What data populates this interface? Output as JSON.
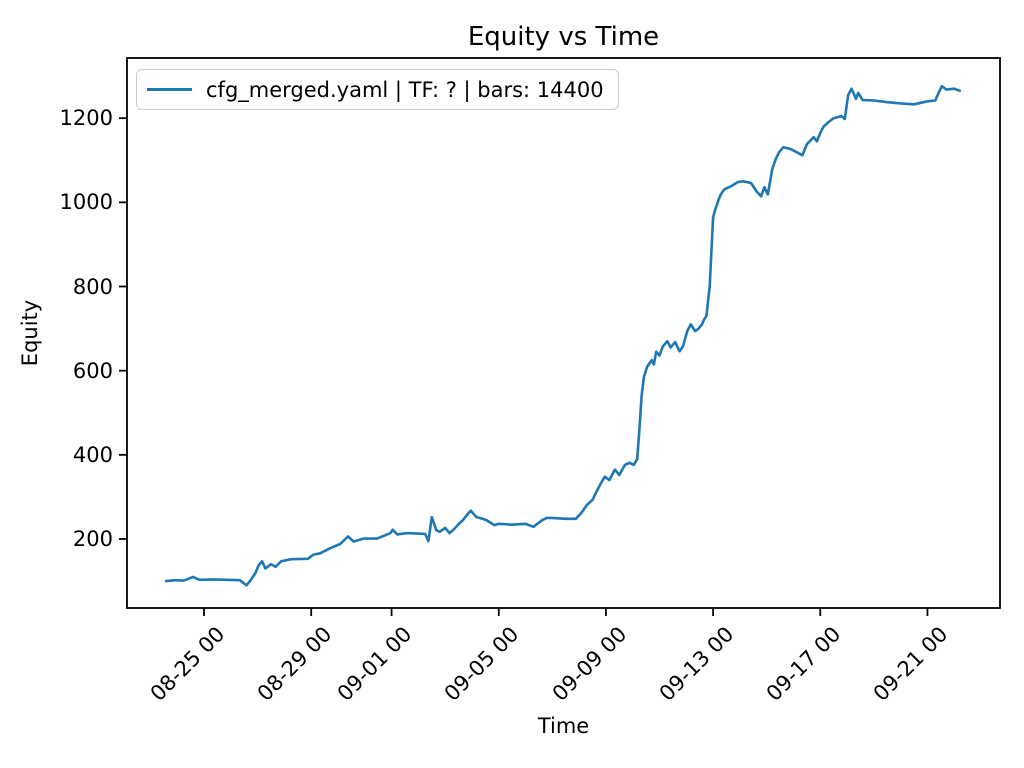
{
  "title": "Equity vs Time",
  "xlabel": "Time",
  "ylabel": "Equity",
  "legend": {
    "label": "cfg_merged.yaml | TF: ? | bars: 14400",
    "line_color": "#1f77b4"
  },
  "chart_data": {
    "type": "line",
    "title": "Equity vs Time",
    "xlabel": "Time",
    "ylabel": "Equity",
    "legend_position": "upper left",
    "grid": false,
    "line_color": "#1f77b4",
    "yticks": [
      200,
      400,
      600,
      800,
      1000,
      1200
    ],
    "ylim": [
      36,
      1343
    ],
    "xticks": [
      "08-25 00",
      "08-29 00",
      "09-01 00",
      "09-05 00",
      "09-09 00",
      "09-13 00",
      "09-17 00",
      "09-21 00"
    ],
    "xlim": [
      "08-22 03:00",
      "09-23 17:00"
    ],
    "series": [
      {
        "name": "cfg_merged.yaml | TF: ? | bars: 14400",
        "color": "#1f77b4",
        "points": [
          [
            "08-23 14:00",
            100
          ],
          [
            "08-23 22:00",
            102
          ],
          [
            "08-24 06:00",
            101
          ],
          [
            "08-24 14:00",
            110
          ],
          [
            "08-24 20:00",
            103
          ],
          [
            "08-25 08:00",
            104
          ],
          [
            "08-25 20:00",
            103
          ],
          [
            "08-26 08:00",
            102
          ],
          [
            "08-26 14:00",
            90
          ],
          [
            "08-26 18:00",
            103
          ],
          [
            "08-26 22:00",
            119
          ],
          [
            "08-27 01:00",
            138
          ],
          [
            "08-27 04:00",
            147
          ],
          [
            "08-27 07:00",
            130
          ],
          [
            "08-27 12:00",
            140
          ],
          [
            "08-27 16:00",
            134
          ],
          [
            "08-27 21:00",
            147
          ],
          [
            "08-28 06:00",
            152
          ],
          [
            "08-28 21:00",
            153
          ],
          [
            "08-29 02:00",
            163
          ],
          [
            "08-29 08:00",
            166
          ],
          [
            "08-29 17:00",
            178
          ],
          [
            "08-30 02:00",
            188
          ],
          [
            "08-30 09:00",
            206
          ],
          [
            "08-30 14:00",
            194
          ],
          [
            "08-30 23:00",
            201
          ],
          [
            "08-31 11:00",
            201
          ],
          [
            "08-31 23:00",
            214
          ],
          [
            "09-01 01:00",
            222
          ],
          [
            "09-01 05:00",
            211
          ],
          [
            "09-01 14:00",
            214
          ],
          [
            "09-02 06:00",
            212
          ],
          [
            "09-02 09:00",
            195
          ],
          [
            "09-02 12:00",
            252
          ],
          [
            "09-02 16:00",
            221
          ],
          [
            "09-02 19:00",
            217
          ],
          [
            "09-03 00:00",
            226
          ],
          [
            "09-03 04:00",
            214
          ],
          [
            "09-03 07:00",
            221
          ],
          [
            "09-03 13:00",
            238
          ],
          [
            "09-03 16:00",
            245
          ],
          [
            "09-03 21:00",
            262
          ],
          [
            "09-03 23:00",
            267
          ],
          [
            "09-04 04:00",
            252
          ],
          [
            "09-04 07:00",
            250
          ],
          [
            "09-04 13:00",
            245
          ],
          [
            "09-04 20:00",
            233
          ],
          [
            "09-05 00:00",
            236
          ],
          [
            "09-05 12:00",
            234
          ],
          [
            "09-06 00:00",
            236
          ],
          [
            "09-06 07:00",
            229
          ],
          [
            "09-06 15:00",
            245
          ],
          [
            "09-06 19:00",
            250
          ],
          [
            "09-07 00:00",
            250
          ],
          [
            "09-07 12:00",
            248
          ],
          [
            "09-07 21:00",
            248
          ],
          [
            "09-08 02:00",
            262
          ],
          [
            "09-08 07:00",
            281
          ],
          [
            "09-08 12:00",
            293
          ],
          [
            "09-08 16:00",
            315
          ],
          [
            "09-08 20:00",
            335
          ],
          [
            "09-08 23:00",
            348
          ],
          [
            "09-09 03:00",
            340
          ],
          [
            "09-09 08:00",
            365
          ],
          [
            "09-09 12:00",
            352
          ],
          [
            "09-09 17:00",
            376
          ],
          [
            "09-09 21:00",
            381
          ],
          [
            "09-10 01:00",
            376
          ],
          [
            "09-10 04:00",
            390
          ],
          [
            "09-10 06:00",
            460
          ],
          [
            "09-10 08:00",
            540
          ],
          [
            "09-10 10:00",
            585
          ],
          [
            "09-10 13:00",
            610
          ],
          [
            "09-10 17:00",
            625
          ],
          [
            "09-10 19:00",
            615
          ],
          [
            "09-10 21:00",
            645
          ],
          [
            "09-11 00:00",
            636
          ],
          [
            "09-11 03:00",
            658
          ],
          [
            "09-11 07:00",
            670
          ],
          [
            "09-11 10:00",
            655
          ],
          [
            "09-11 14:00",
            668
          ],
          [
            "09-11 18:00",
            646
          ],
          [
            "09-11 21:00",
            658
          ],
          [
            "09-12 01:00",
            695
          ],
          [
            "09-12 04:00",
            710
          ],
          [
            "09-12 08:00",
            694
          ],
          [
            "09-12 11:00",
            700
          ],
          [
            "09-12 14:00",
            710
          ],
          [
            "09-12 16:00",
            722
          ],
          [
            "09-12 18:00",
            730
          ],
          [
            "09-12 21:00",
            800
          ],
          [
            "09-13 00:00",
            965
          ],
          [
            "09-13 02:00",
            983
          ],
          [
            "09-13 05:00",
            1007
          ],
          [
            "09-13 07:00",
            1019
          ],
          [
            "09-13 10:00",
            1031
          ],
          [
            "09-13 16:00",
            1038
          ],
          [
            "09-13 22:00",
            1048
          ],
          [
            "09-14 03:00",
            1050
          ],
          [
            "09-14 10:00",
            1046
          ],
          [
            "09-14 15:00",
            1026
          ],
          [
            "09-14 19:00",
            1014
          ],
          [
            "09-14 22:00",
            1036
          ],
          [
            "09-15 01:00",
            1019
          ],
          [
            "09-15 05:00",
            1079
          ],
          [
            "09-15 08:00",
            1102
          ],
          [
            "09-15 11:00",
            1119
          ],
          [
            "09-15 15:00",
            1131
          ],
          [
            "09-15 22:00",
            1126
          ],
          [
            "09-16 03:00",
            1119
          ],
          [
            "09-16 08:00",
            1112
          ],
          [
            "09-16 12:00",
            1138
          ],
          [
            "09-16 18:00",
            1155
          ],
          [
            "09-16 21:00",
            1145
          ],
          [
            "09-17 00:00",
            1165
          ],
          [
            "09-17 03:00",
            1180
          ],
          [
            "09-17 08:00",
            1192
          ],
          [
            "09-17 12:00",
            1200
          ],
          [
            "09-17 19:00",
            1205
          ],
          [
            "09-17 22:00",
            1198
          ],
          [
            "09-18 01:00",
            1255
          ],
          [
            "09-18 04:00",
            1270
          ],
          [
            "09-18 08:00",
            1246
          ],
          [
            "09-18 10:00",
            1260
          ],
          [
            "09-18 14:00",
            1243
          ],
          [
            "09-19 00:00",
            1242
          ],
          [
            "09-19 12:00",
            1238
          ],
          [
            "09-20 00:00",
            1235
          ],
          [
            "09-20 12:00",
            1233
          ],
          [
            "09-21 00:00",
            1240
          ],
          [
            "09-21 07:00",
            1242
          ],
          [
            "09-21 10:00",
            1260
          ],
          [
            "09-21 13:00",
            1276
          ],
          [
            "09-21 17:00",
            1268
          ],
          [
            "09-22 00:00",
            1270
          ],
          [
            "09-22 05:00",
            1265
          ]
        ]
      }
    ]
  }
}
